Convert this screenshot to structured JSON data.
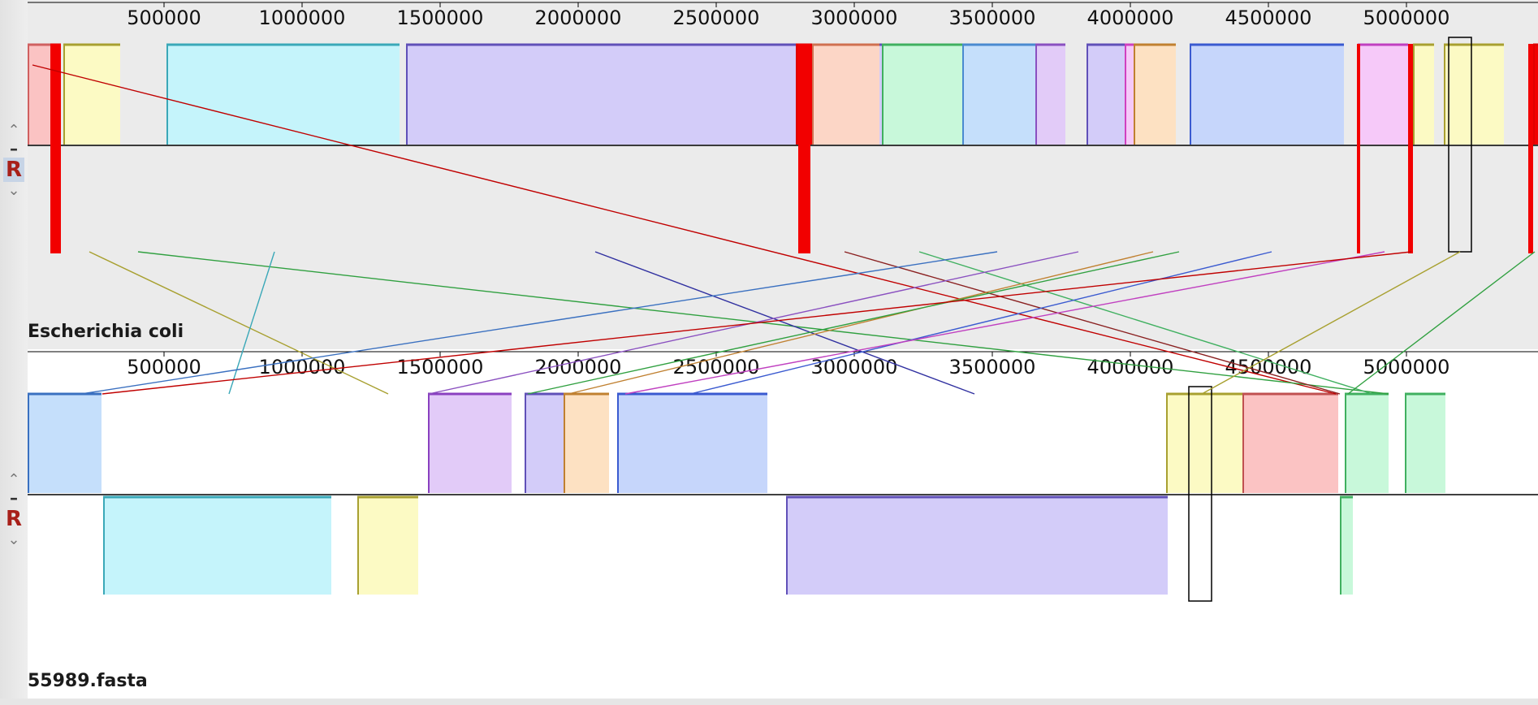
{
  "genomes": [
    {
      "name": "Escherichia coli"
    },
    {
      "name": "55989.fasta"
    }
  ],
  "ruler_ticks": [
    "500000",
    "1000000",
    "1500000",
    "2000000",
    "2500000",
    "3000000",
    "3500000",
    "4000000",
    "4500000",
    "5000000"
  ],
  "controls": {
    "up": "⌃",
    "minus": "–",
    "reverse": "R",
    "down": "⌄"
  },
  "lcb_colors": {
    "red": "#f20000",
    "salmon": "#fbc3c3",
    "yellow": "#fcfac4",
    "cyan": "#c5f4fb",
    "lavender": "#d3ccf9",
    "peach": "#fcd6c6",
    "mint": "#c8f8da",
    "skyblue": "#c5dffb",
    "lilac": "#e2cbf8",
    "orange": "#fde1c2",
    "blue": "#c6d6fb",
    "pink": "#f6c9f9"
  }
}
